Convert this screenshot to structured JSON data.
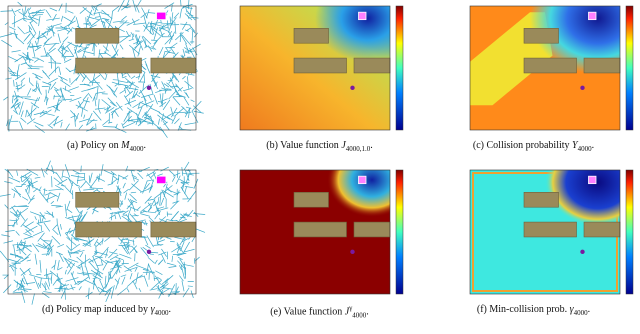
{
  "panels": [
    {
      "label": "(a) Policy on ",
      "symbol": "M",
      "sub": "4000",
      "tail": "."
    },
    {
      "label": "(b) Value function ",
      "symbol": "J",
      "sub": "4000,1.0",
      "tail": "."
    },
    {
      "label": "(c) Collision probability ",
      "symbol": "Υ",
      "sub": "4000",
      "tail": "."
    },
    {
      "label": "(d) Policy map induced by ",
      "symbol": "γ",
      "sub": "4000",
      "tail": "."
    },
    {
      "label": "(e) Value function ",
      "symbol": "J",
      "sup": "γ",
      "sub": "4000",
      "tail": "."
    },
    {
      "label": "(f) Min-collision prob. ",
      "symbol": "γ",
      "sub": "4000",
      "tail": "."
    }
  ]
}
